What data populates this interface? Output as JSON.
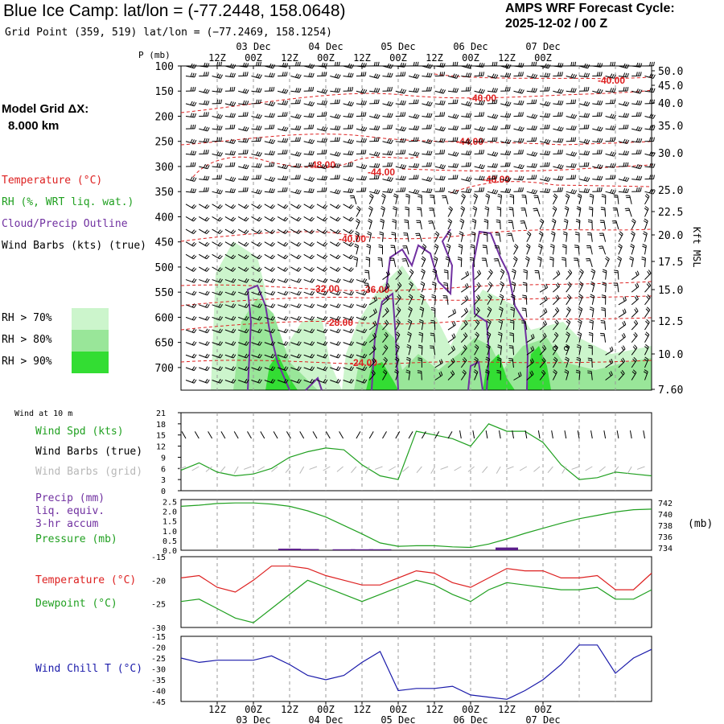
{
  "header": {
    "title": "Blue Ice Camp:  lat/lon = (-77.2448, 158.0648)",
    "grid_point": "Grid Point (359, 519) lat/lon = (−77.2469, 158.1254)",
    "cycle_label": "AMPS WRF Forecast Cycle:",
    "cycle_value": "2025-12-02 / 00  Z"
  },
  "side": {
    "model_grid_label": "Model Grid ΔX:",
    "model_grid_value": "8.000 km",
    "temperature": "Temperature (°C)",
    "rh": "RH (%, WRT liq. wat.)",
    "cloud": "Cloud/Precip Outline",
    "wind": "Wind Barbs (kts) (true)",
    "rh70": "RH > 70%",
    "rh80": "RH > 80%",
    "rh90": "RH > 90%",
    "colors": {
      "temperature": "#dd2020",
      "rh": "#20a020",
      "cloud": "#7030a0",
      "wind": "#000000",
      "rh70": "#ccf5cc",
      "rh80": "#99e699",
      "rh90": "#33dd33"
    }
  },
  "legends": {
    "wind10": "Wind at 10 m",
    "wspd": "Wind Spd (kts)",
    "wbarb_true": "Wind Barbs (true)",
    "wbarb_grid": "Wind Barbs (grid)",
    "precip": "Precip (mm)",
    "liq": "liq. equiv.",
    "accum": "3-hr accum",
    "pressure": "Pressure (mb)",
    "mb_unit": "(mb)",
    "temp": "Temperature (°C)",
    "dew": "Dewpoint (°C)",
    "windchill": "Wind Chill T (°C)"
  },
  "time_axis": {
    "top_hours": [
      "12Z",
      "00Z",
      "12Z",
      "00Z",
      "12Z",
      "00Z",
      "12Z",
      "00Z",
      "12Z",
      "00Z"
    ],
    "top_dates": [
      "03 Dec",
      "04 Dec",
      "05 Dec",
      "06 Dec",
      "07 Dec"
    ],
    "bottom_hours": [
      "12Z",
      "00Z",
      "12Z",
      "00Z",
      "12Z",
      "00Z",
      "12Z",
      "00Z",
      "12Z",
      "00Z"
    ],
    "bottom_dates": [
      "03 Dec",
      "04 Dec",
      "05 Dec",
      "06 Dec",
      "07 Dec"
    ]
  },
  "chart_data": [
    {
      "type": "heatmap",
      "ylabel": "P (mb)",
      "y2label": "Kft MSL",
      "pressure_ticks": [
        "100",
        "150",
        "200",
        "250",
        "300",
        "350",
        "400",
        "450",
        "500",
        "550",
        "600",
        "650",
        "700"
      ],
      "height_ticks": [
        "50.0",
        "45.0",
        "40.0",
        "35.0",
        "30.0",
        "25.0",
        "22.5",
        "20.0",
        "17.5",
        "15.0",
        "12.5",
        "10.0",
        "7.60"
      ],
      "temperature_contour_labels": [
        "-40.00",
        "-40.00",
        "-44.00",
        "-48.00",
        "-44.00",
        "-48.00",
        "-40.00",
        "-32.00",
        "-36.00",
        "-28.00",
        "-24.00"
      ]
    },
    {
      "type": "line",
      "title": "Wind Spd (kts)",
      "yticks": [
        "21",
        "18",
        "15",
        "12",
        "9",
        "6",
        "3",
        "0"
      ],
      "ylim": [
        0,
        21
      ],
      "x_hours": [
        0,
        6,
        12,
        18,
        24,
        30,
        36,
        42,
        48,
        54,
        60,
        66,
        72,
        78,
        84,
        90,
        96,
        102,
        108,
        114,
        120,
        126,
        132,
        138,
        144,
        150,
        156
      ],
      "series": [
        {
          "name": "Wind Spd (kts)",
          "values": [
            5.5,
            7.5,
            5,
            4,
            4.5,
            6,
            9,
            10.5,
            11.5,
            11,
            7,
            4,
            3,
            16,
            15,
            14,
            12,
            18,
            16,
            16,
            13,
            7,
            3,
            3.5,
            5,
            4.5,
            4
          ]
        }
      ]
    },
    {
      "type": "line",
      "yticks_left": [
        "2.5",
        "2.0",
        "1.5",
        "1.0",
        "0.5",
        "0.0"
      ],
      "yticks_right": [
        "742",
        "740",
        "738",
        "736",
        "734"
      ],
      "x_hours": [
        0,
        6,
        12,
        18,
        24,
        30,
        36,
        42,
        48,
        54,
        60,
        66,
        72,
        78,
        84,
        90,
        96,
        102,
        108,
        114,
        120,
        126,
        132,
        138,
        144,
        150,
        156
      ],
      "series": [
        {
          "name": "Pressure (mb)",
          "values": [
            741.4,
            741.6,
            741.9,
            742.0,
            742.0,
            741.8,
            741.4,
            740.6,
            739.5,
            738.0,
            736.5,
            734.9,
            734.3,
            734.4,
            734.4,
            734.2,
            734.1,
            734.7,
            735.6,
            736.6,
            737.5,
            738.4,
            739.2,
            739.8,
            740.4,
            740.8,
            740.9
          ]
        }
      ],
      "precip_bars": [
        {
          "x": 36,
          "value": 0.08
        },
        {
          "x": 42,
          "value": 0.06
        },
        {
          "x": 54,
          "value": 0.05
        },
        {
          "x": 60,
          "value": 0.05
        },
        {
          "x": 66,
          "value": 0.05
        },
        {
          "x": 108,
          "value": 0.14
        }
      ]
    },
    {
      "type": "line",
      "yticks": [
        "-15",
        "-20",
        "-25",
        "-30"
      ],
      "ylim": [
        -30,
        -15
      ],
      "x_hours": [
        0,
        6,
        12,
        18,
        24,
        30,
        36,
        42,
        48,
        54,
        60,
        66,
        72,
        78,
        84,
        90,
        96,
        102,
        108,
        114,
        120,
        126,
        132,
        138,
        144,
        150,
        156
      ],
      "series": [
        {
          "name": "Temperature (°C)",
          "values": [
            -19.5,
            -19,
            -21.5,
            -22.5,
            -20,
            -17,
            -17,
            -17.5,
            -19,
            -20,
            -21,
            -21,
            -19.5,
            -18,
            -18.5,
            -20.5,
            -21.5,
            -19.5,
            -17.5,
            -18,
            -18,
            -19.5,
            -19.5,
            -19,
            -22,
            -22,
            -18.5
          ]
        },
        {
          "name": "Dewpoint (°C)",
          "values": [
            -24.5,
            -24,
            -26,
            -28,
            -29,
            -26,
            -23,
            -20,
            -21.5,
            -23,
            -24.5,
            -23,
            -21.5,
            -20,
            -21,
            -23,
            -24.5,
            -22,
            -20.5,
            -21,
            -21.5,
            -22,
            -22,
            -21.5,
            -24,
            -24,
            -22
          ]
        }
      ]
    },
    {
      "type": "line",
      "yticks": [
        "-15",
        "-20",
        "-25",
        "-30",
        "-35",
        "-40",
        "-45"
      ],
      "ylim": [
        -45,
        -15
      ],
      "x_hours": [
        0,
        6,
        12,
        18,
        24,
        30,
        36,
        42,
        48,
        54,
        60,
        66,
        72,
        78,
        84,
        90,
        96,
        102,
        108,
        114,
        120,
        126,
        132,
        138,
        144,
        150,
        156
      ],
      "series": [
        {
          "name": "Wind Chill T (°C)",
          "values": [
            -25,
            -27,
            -26,
            -26,
            -26,
            -24,
            -28,
            -33,
            -35,
            -33,
            -27,
            -22,
            -40,
            -39,
            -39,
            -38,
            -42,
            -43,
            -44,
            -40,
            -35,
            -28,
            -19,
            -19,
            -32,
            -25,
            -21
          ]
        }
      ]
    }
  ]
}
